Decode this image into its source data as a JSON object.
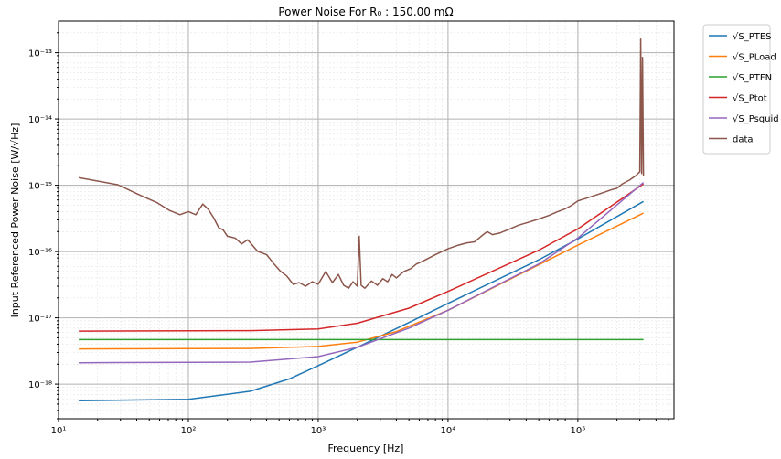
{
  "chart_data": {
    "type": "line",
    "title": "Power Noise For R₀ : 150.00 mΩ",
    "xlabel": "Frequency [Hz]",
    "ylabel": "Input Referenced Power Noise [W/√Hz]",
    "xscale": "log",
    "yscale": "log",
    "xlim": [
      10,
      550000
    ],
    "ylim": [
      3e-19,
      3e-13
    ],
    "grid": true,
    "legend_position": "outside-top-right",
    "x_ticks": [
      {
        "value": 10,
        "label": "10¹"
      },
      {
        "value": 100,
        "label": "10²"
      },
      {
        "value": 1000,
        "label": "10³"
      },
      {
        "value": 10000,
        "label": "10⁴"
      },
      {
        "value": 100000,
        "label": "10⁵"
      }
    ],
    "y_ticks": [
      {
        "value": 1e-18,
        "label": "10⁻¹⁸"
      },
      {
        "value": 1e-17,
        "label": "10⁻¹⁷"
      },
      {
        "value": 1e-16,
        "label": "10⁻¹⁶"
      },
      {
        "value": 1e-15,
        "label": "10⁻¹⁵"
      },
      {
        "value": 1e-14,
        "label": "10⁻¹⁴"
      },
      {
        "value": 1e-13,
        "label": "10⁻¹³"
      }
    ],
    "series": [
      {
        "name": "√S_PTES",
        "color": "#1f77b4",
        "x": [
          14.3,
          100,
          300,
          600,
          1000,
          2000,
          5000,
          10000,
          50000,
          100000,
          320000
        ],
        "y": [
          5.6e-19,
          5.9e-19,
          7.8e-19,
          1.2e-18,
          1.9e-18,
          3.6e-18,
          8.5e-18,
          1.65e-17,
          7.5e-17,
          1.55e-16,
          5.7e-16
        ]
      },
      {
        "name": "√S_PLoad",
        "color": "#ff7f0e",
        "x": [
          14.3,
          300,
          1000,
          2000,
          4000,
          10000,
          50000,
          100000,
          320000
        ],
        "y": [
          3.4e-18,
          3.45e-18,
          3.7e-18,
          4.3e-18,
          6.2e-18,
          1.3e-17,
          6.3e-17,
          1.25e-16,
          3.8e-16
        ]
      },
      {
        "name": "√S_PTFN",
        "color": "#2ca02c",
        "x": [
          14.3,
          320000
        ],
        "y": [
          4.7e-18,
          4.7e-18
        ]
      },
      {
        "name": "√S_Ptot",
        "color": "#d62728",
        "x": [
          14.3,
          300,
          1000,
          2000,
          5000,
          10000,
          50000,
          100000,
          320000
        ],
        "y": [
          6.3e-18,
          6.4e-18,
          6.8e-18,
          8.3e-18,
          1.4e-17,
          2.5e-17,
          1.05e-16,
          2.2e-16,
          1.05e-15
        ]
      },
      {
        "name": "√S_Psquid",
        "color": "#9467bd",
        "x": [
          14.3,
          300,
          1000,
          2000,
          5000,
          10000,
          50000,
          100000,
          320000
        ],
        "y": [
          2.1e-18,
          2.15e-18,
          2.6e-18,
          3.6e-18,
          7e-18,
          1.3e-17,
          6.5e-17,
          1.6e-16,
          1.1e-15
        ]
      },
      {
        "name": "data",
        "color": "#8c564b",
        "x": [
          14.3,
          28.6,
          43,
          57,
          71,
          86,
          100,
          114,
          129,
          143,
          157,
          171,
          186,
          200,
          229,
          257,
          286,
          343,
          400,
          457,
          514,
          571,
          643,
          714,
          800,
          900,
          1000,
          1143,
          1286,
          1429,
          1571,
          1714,
          1857,
          2000,
          2070,
          2143,
          2286,
          2571,
          2857,
          3143,
          3429,
          3714,
          4000,
          4571,
          5143,
          5714,
          6429,
          7143,
          8000,
          9000,
          10000,
          12000,
          14000,
          16000,
          18000,
          20000,
          22000,
          25000,
          30000,
          35000,
          40000,
          50000,
          60000,
          70000,
          80000,
          90000,
          100000,
          120000,
          150000,
          180000,
          200000,
          220000,
          250000,
          280000,
          300000,
          305000,
          310000,
          315000,
          320000
        ],
        "y": [
          1.3e-15,
          1.02e-15,
          7e-16,
          5.5e-16,
          4.2e-16,
          3.6e-16,
          4e-16,
          3.6e-16,
          5.2e-16,
          4.3e-16,
          3.2e-16,
          2.3e-16,
          2.1e-16,
          1.7e-16,
          1.6e-16,
          1.3e-16,
          1.5e-16,
          1e-16,
          9e-17,
          6.5e-17,
          5e-17,
          4.3e-17,
          3.2e-17,
          3.4e-17,
          3e-17,
          3.5e-17,
          3.2e-17,
          5e-17,
          3.4e-17,
          4.5e-17,
          3.1e-17,
          2.8e-17,
          3.5e-17,
          3e-17,
          1.7e-16,
          3.1e-17,
          2.8e-17,
          3.6e-17,
          3.1e-17,
          3.9e-17,
          3.5e-17,
          4.5e-17,
          4e-17,
          5e-17,
          5.5e-17,
          6.5e-17,
          7.2e-17,
          8e-17,
          9e-17,
          1e-16,
          1.1e-16,
          1.25e-16,
          1.35e-16,
          1.4e-16,
          1.7e-16,
          2e-16,
          1.8e-16,
          1.9e-16,
          2.2e-16,
          2.5e-16,
          2.7e-16,
          3.1e-16,
          3.5e-16,
          4e-16,
          4.4e-16,
          5e-16,
          5.8e-16,
          6.5e-16,
          7.5e-16,
          8.5e-16,
          9e-16,
          1.05e-15,
          1.2e-15,
          1.4e-15,
          1.6e-15,
          1.6e-13,
          1.5e-15,
          8.5e-14,
          1.4e-15
        ]
      }
    ]
  }
}
